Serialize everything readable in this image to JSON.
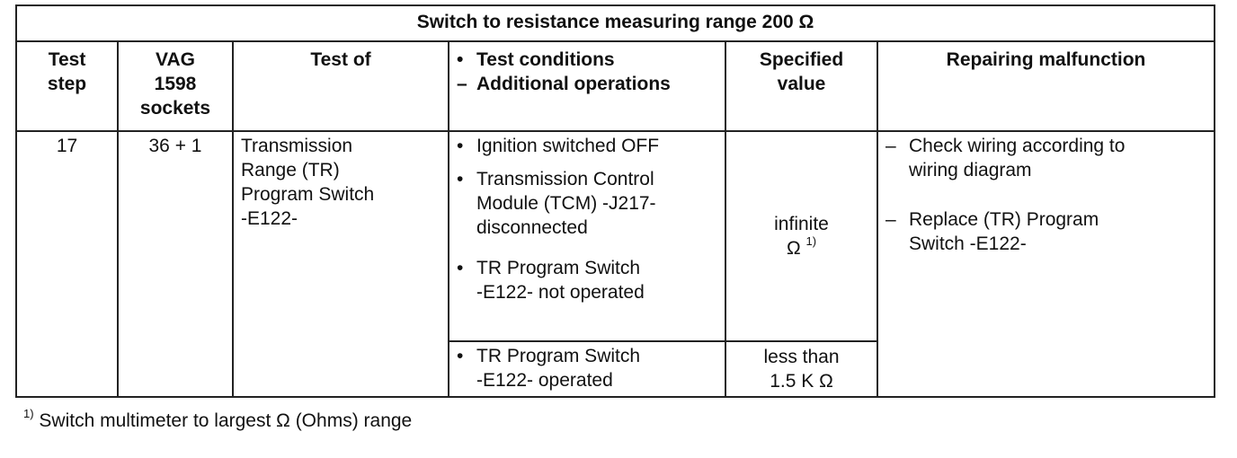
{
  "title": "Switch to resistance measuring range 200 Ω",
  "headers": {
    "test_step": [
      "Test",
      "step"
    ],
    "vag_sockets": [
      "VAG",
      "1598",
      "sockets"
    ],
    "test_of": "Test of",
    "conditions_bullet": "•",
    "conditions_line1": "Test conditions",
    "conditions_dash": "–",
    "conditions_line2": "Additional operations",
    "specified": [
      "Specified",
      "value"
    ],
    "repairing": "Repairing malfunction"
  },
  "row": {
    "step": "17",
    "sockets": "36 + 1",
    "test_of": [
      "Transmission",
      "Range (TR)",
      "Program Switch",
      "-E122-"
    ],
    "conditions_a": [
      {
        "bullet": "•",
        "lines": [
          "Ignition switched OFF"
        ]
      },
      {
        "bullet": "•",
        "lines": [
          "Transmission Control",
          "Module (TCM) -J217-",
          "disconnected"
        ]
      },
      {
        "bullet": "•",
        "lines": [
          "TR Program Switch",
          "-E122- not operated"
        ]
      }
    ],
    "value_a": [
      "infinite",
      "Ω"
    ],
    "value_a_sup": "1)",
    "conditions_b": [
      {
        "bullet": "•",
        "lines": [
          "TR Program Switch",
          "-E122- operated"
        ]
      }
    ],
    "value_b": [
      "less than",
      "1.5 K Ω"
    ],
    "repairs": [
      {
        "dash": "–",
        "lines": [
          "Check wiring according to",
          "wiring diagram"
        ]
      },
      {
        "dash": "–",
        "lines": [
          "Replace (TR) Program",
          "Switch -E122-"
        ]
      }
    ]
  },
  "footnote": {
    "marker": "1)",
    "text": "Switch multimeter to largest Ω (Ohms) range"
  }
}
